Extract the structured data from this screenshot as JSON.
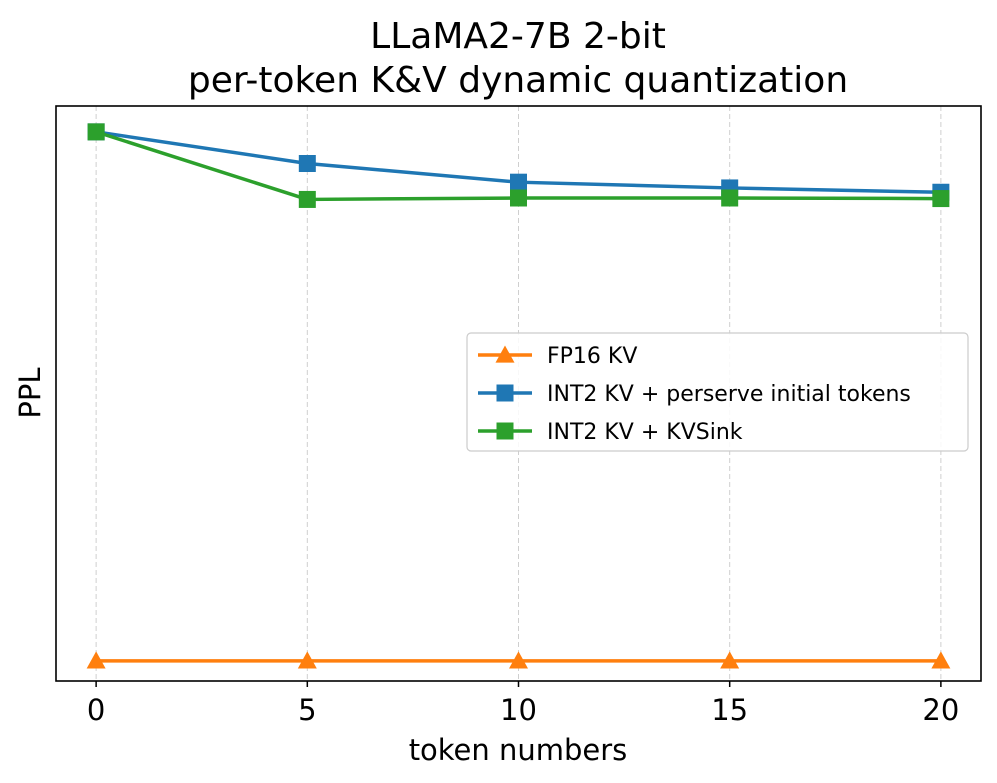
{
  "chart_data": {
    "type": "line",
    "title_line1": "LLaMA2-7B 2-bit",
    "title_line2": "per-token K&V dynamic quantization",
    "xlabel": "token numbers",
    "ylabel": "PPL",
    "x": [
      0,
      5,
      10,
      15,
      20
    ],
    "x_ticks": [
      "0",
      "5",
      "10",
      "15",
      "20"
    ],
    "xlim": [
      -0.95,
      20.95
    ],
    "ylim": [
      5.5,
      25.5
    ],
    "y_ticks_visible": false,
    "grid": "x-dashed",
    "legend_position": "center-right",
    "series": [
      {
        "name": "FP16 KV",
        "color": "#ff7f0e",
        "marker": "triangle",
        "values": [
          6.2,
          6.2,
          6.2,
          6.2,
          6.2
        ]
      },
      {
        "name": "INT2 KV + perserve initial tokens",
        "color": "#1f77b4",
        "marker": "square",
        "values": [
          24.6,
          23.5,
          22.85,
          22.65,
          22.5
        ]
      },
      {
        "name": "INT2 KV + KVSink",
        "color": "#2ca02c",
        "marker": "square",
        "values": [
          24.6,
          22.25,
          22.3,
          22.3,
          22.28
        ]
      }
    ]
  }
}
